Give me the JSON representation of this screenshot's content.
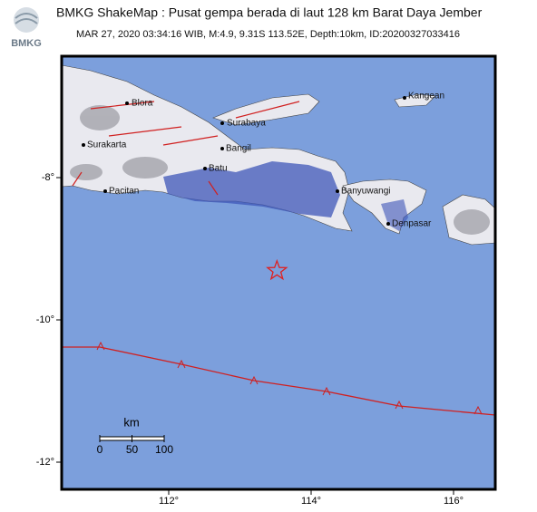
{
  "header": {
    "logo_text": "BMKG",
    "title": "BMKG ShakeMap : Pusat gempa berada di laut 128 km Barat Daya Jember",
    "subtitle": "MAR 27, 2020 03:34:16 WIB, M:4.9, 9.31S 113.52E, Depth:10km, ID:20200327033416"
  },
  "map": {
    "lon_ticks": [
      {
        "value": 112,
        "label": "112°"
      },
      {
        "value": 114,
        "label": "114°"
      },
      {
        "value": 116,
        "label": "116°"
      }
    ],
    "lat_ticks": [
      {
        "value": -8,
        "label": "-8°"
      },
      {
        "value": -10,
        "label": "-10°"
      },
      {
        "value": -12,
        "label": "-12°"
      }
    ],
    "epicenter": {
      "lon": 113.52,
      "lat": -9.31
    },
    "places": [
      "Blora",
      "Surabaya",
      "Surakarta",
      "Bangil",
      "Batu",
      "Pacitan",
      "Banyuwangi",
      "Kangean",
      "Denpasar"
    ],
    "scale_bar": {
      "unit": "km",
      "ticks": [
        0,
        50,
        100
      ]
    }
  }
}
